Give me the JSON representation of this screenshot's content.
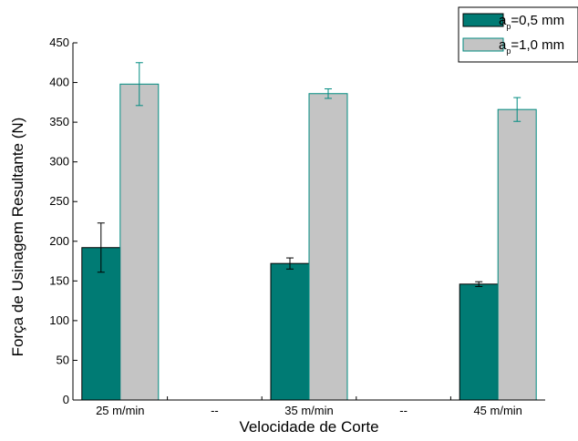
{
  "chart_data": {
    "type": "bar",
    "categories": [
      "25 m/min",
      "--",
      "35 m/min",
      "--",
      "45 m/min"
    ],
    "series": [
      {
        "legend_base": "a",
        "legend_sub": "p",
        "legend_rest": "=0,5 mm",
        "color": "#007b74",
        "stroke": "#000000",
        "values": [
          192,
          null,
          172,
          null,
          146
        ],
        "errors": [
          31,
          null,
          7,
          null,
          3
        ]
      },
      {
        "legend_base": "a",
        "legend_sub": "p",
        "legend_rest": "=1,0 mm",
        "color": "#c4c4c4",
        "stroke": "#008b80",
        "values": [
          398,
          null,
          386,
          null,
          366
        ],
        "errors": [
          27,
          null,
          6,
          null,
          15
        ]
      }
    ],
    "xlabel": "Velocidade de Corte",
    "ylabel": "Força de Usinagem Resultante (N)",
    "ylim": [
      0,
      450
    ],
    "yticks": [
      "0",
      "50",
      "100",
      "150",
      "200",
      "250",
      "300",
      "350",
      "400",
      "450"
    ],
    "error_bar_color": "#000000",
    "legend_position": "top-right",
    "grid": false
  }
}
